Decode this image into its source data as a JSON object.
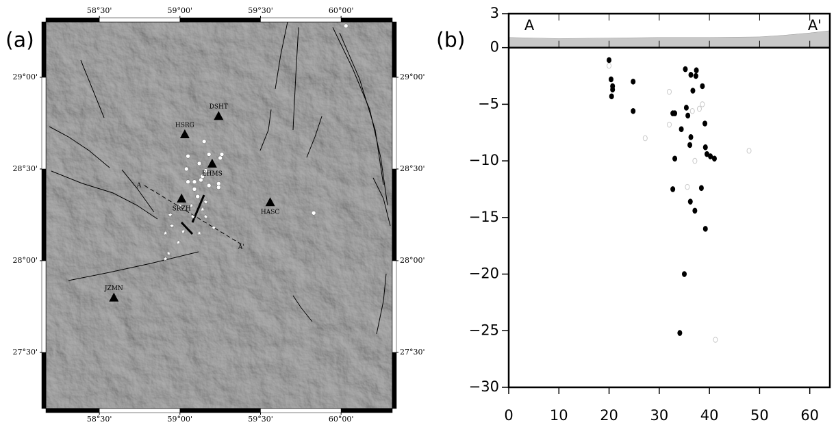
{
  "chart_data": [
    {
      "type": "map",
      "panel_label": "(a)",
      "xlim": [
        58.168,
        60.318
      ],
      "ylim": [
        27.194,
        29.302
      ],
      "xticks": [
        {
          "value": 58.5,
          "label": "58°30'"
        },
        {
          "value": 59,
          "label": "59°00'"
        },
        {
          "value": 59.5,
          "label": "59°30'"
        },
        {
          "value": 60,
          "label": "60°00'"
        }
      ],
      "yticks": [
        {
          "value": 27.5,
          "label": "27°30'"
        },
        {
          "value": 28,
          "label": "28°00'"
        },
        {
          "value": 28.5,
          "label": "28°30'"
        },
        {
          "value": 29,
          "label": "29°00'"
        }
      ],
      "stations": {
        "names": [
          "DSHT",
          "HSRG",
          "EHMS",
          "SRZH",
          "HASC",
          "JZMN"
        ],
        "lon": [
          59.24,
          59.03,
          59.2,
          59.01,
          59.56,
          58.59
        ],
        "lat": [
          28.79,
          28.69,
          28.53,
          28.34,
          28.32,
          27.8
        ]
      },
      "events": {
        "lon": [
          59.15,
          59.05,
          59.18,
          59.26,
          59.25,
          59.04,
          59.12,
          59.16,
          59.14,
          59.09,
          59.05,
          59.13,
          59.18,
          59.24,
          59.24,
          59.09,
          59.11,
          59.83,
          60.03
        ],
        "lat": [
          28.65,
          28.57,
          28.58,
          28.58,
          28.56,
          28.5,
          28.53,
          28.49,
          28.46,
          28.43,
          28.43,
          28.44,
          28.41,
          28.42,
          28.4,
          28.39,
          28.35,
          28.26,
          29.28
        ]
      },
      "aftershocks": {
        "lon": [
          58.94,
          59.0,
          59.07,
          59.14,
          59.16,
          59.21,
          59.12,
          59.02,
          58.95,
          58.91,
          58.99,
          58.93,
          58.91,
          59.08,
          59.16
        ],
        "lat": [
          28.25,
          28.3,
          28.3,
          28.28,
          28.24,
          28.18,
          28.15,
          28.16,
          28.19,
          28.15,
          28.1,
          28.04,
          28.01,
          28.24,
          28.32
        ]
      },
      "profile": {
        "labels": [
          "A",
          "A'"
        ],
        "lon": [
          58.78,
          59.38
        ],
        "lat": [
          28.41,
          28.09
        ]
      }
    },
    {
      "type": "scatter",
      "panel_label": "(b)",
      "section_labels": [
        "A",
        "A'"
      ],
      "xlim": [
        0,
        64
      ],
      "ylim": [
        -30,
        3
      ],
      "xticks": [
        0,
        10,
        20,
        30,
        40,
        50,
        60
      ],
      "yticks": [
        {
          "value": -30,
          "label": "−30"
        },
        {
          "value": -25,
          "label": "−25"
        },
        {
          "value": -20,
          "label": "−20"
        },
        {
          "value": -15,
          "label": "−15"
        },
        {
          "value": -10,
          "label": "−10"
        },
        {
          "value": -5,
          "label": "−5"
        },
        0,
        3
      ],
      "topography": {
        "color": "#c8c8c8",
        "x": [
          0,
          10,
          20,
          30,
          40,
          50,
          55,
          60,
          64
        ],
        "values": [
          0.9,
          0.8,
          0.85,
          0.9,
          0.9,
          0.95,
          1.1,
          1.3,
          1.5
        ]
      },
      "series": [
        {
          "color": "#000000",
          "filled": true,
          "x": [
            20,
            20.4,
            20.7,
            20.7,
            20.5,
            24.8,
            24.8,
            35.2,
            36.3,
            37.4,
            37.3,
            38.6,
            36.7,
            35.4,
            35.7,
            33.1,
            32.7,
            39.1,
            34.4,
            36.3,
            36.1,
            39.2,
            39.5,
            40.2,
            41,
            33.1,
            38.4,
            32.7,
            36.2,
            37.1,
            39.2,
            35,
            34.1
          ],
          "values": [
            -1.1,
            -2.8,
            -3.4,
            -3.7,
            -4.3,
            -3,
            -5.6,
            -1.9,
            -2.4,
            -2,
            -2.5,
            -3.4,
            -3.8,
            -5.3,
            -6,
            -5.8,
            -5.8,
            -6.7,
            -7.2,
            -7.9,
            -8.6,
            -8.8,
            -9.4,
            -9.6,
            -9.8,
            -9.8,
            -12.4,
            -12.5,
            -13.6,
            -14.4,
            -16,
            -20,
            -25.2
          ]
        },
        {
          "color": "#c8c8c8",
          "filled": false,
          "x": [
            20,
            32,
            38.6,
            38,
            32,
            36.6,
            27.2,
            37.1,
            47.9,
            35.6,
            41.2
          ],
          "values": [
            -1.6,
            -3.9,
            -5,
            -5.4,
            -6.8,
            -5.6,
            -8,
            -10,
            -9.1,
            -12.3,
            -25.8
          ]
        }
      ]
    }
  ]
}
